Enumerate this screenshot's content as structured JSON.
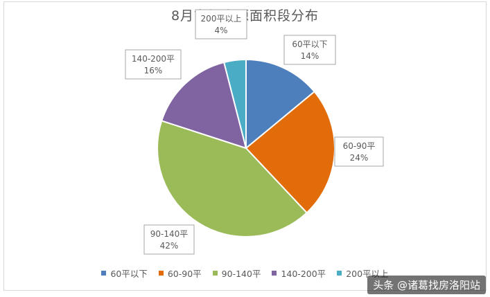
{
  "chart_data": {
    "type": "pie",
    "title": "8月市场房源面积段分布",
    "slices": [
      {
        "label": "60平以下",
        "value": 14,
        "display": "14%",
        "color": "#4e7fbd"
      },
      {
        "label": "60-90平",
        "value": 24,
        "display": "24%",
        "color": "#e36c0a"
      },
      {
        "label": "90-140平",
        "value": 42,
        "display": "42%",
        "color": "#9bbb59"
      },
      {
        "label": "140-200平",
        "value": 16,
        "display": "16%",
        "color": "#8064a2"
      },
      {
        "label": "200平以上",
        "value": 4,
        "display": "4%",
        "color": "#4bacc6"
      }
    ],
    "legend_position": "bottom"
  },
  "watermark": "头条 @诸葛找房洛阳站"
}
